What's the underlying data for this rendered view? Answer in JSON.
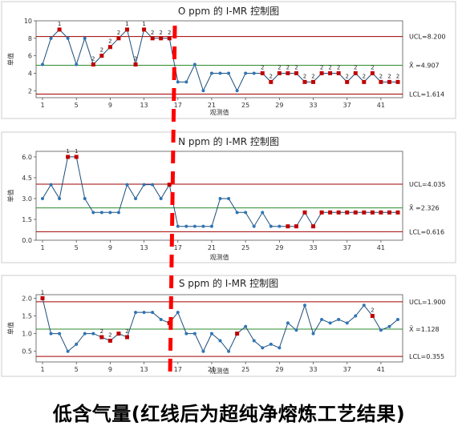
{
  "caption": "低含气量(红线后为超纯净熔炼工艺结果)",
  "colors": {
    "line": "#1f4e79",
    "point": "#2e75b6",
    "flag": "#c00000",
    "ucl": "#a00000",
    "center": "#2e8b2e",
    "divider": "#ff0000",
    "frame": "#cccccc"
  },
  "chart_data": [
    {
      "type": "line",
      "title": "O ppm 的 I-MR 控制图",
      "ylabel": "单值",
      "xlabel": "观测值",
      "ylim": [
        1.2,
        10
      ],
      "yticks": [
        "2",
        "4",
        "6",
        "8",
        "10"
      ],
      "ytick_values": [
        2,
        4,
        6,
        8,
        10
      ],
      "xticks": [
        "1",
        "5",
        "9",
        "13",
        "17",
        "21",
        "25",
        "29",
        "33",
        "37",
        "41"
      ],
      "ucl": 8.2,
      "ucl_label": "UCL=8.200",
      "center": 4.907,
      "center_label": "X̄ =4.907",
      "lcl": 1.614,
      "lcl_label": "LCL=1.614",
      "values": [
        5,
        8,
        9,
        8,
        5,
        8,
        5,
        6,
        7,
        8,
        9,
        5,
        9,
        8,
        8,
        8,
        3,
        3,
        5,
        2,
        4,
        4,
        4,
        2,
        4,
        4,
        4,
        3,
        4,
        4,
        4,
        3,
        3,
        4,
        4,
        4,
        3,
        4,
        3,
        4,
        3,
        3,
        3
      ],
      "flags": [
        {
          "i": 3,
          "t": "1"
        },
        {
          "i": 7,
          "t": "2"
        },
        {
          "i": 8,
          "t": "2"
        },
        {
          "i": 9,
          "t": "2"
        },
        {
          "i": 10,
          "t": "2"
        },
        {
          "i": 11,
          "t": "1"
        },
        {
          "i": 12,
          "t": "2"
        },
        {
          "i": 13,
          "t": "1"
        },
        {
          "i": 14,
          "t": "2"
        },
        {
          "i": 15,
          "t": "2"
        },
        {
          "i": 16,
          "t": "2"
        },
        {
          "i": 27,
          "t": "2"
        },
        {
          "i": 28,
          "t": "2"
        },
        {
          "i": 29,
          "t": "2"
        },
        {
          "i": 30,
          "t": "2"
        },
        {
          "i": 31,
          "t": "2"
        },
        {
          "i": 32,
          "t": "2"
        },
        {
          "i": 33,
          "t": "2"
        },
        {
          "i": 34,
          "t": "2"
        },
        {
          "i": 35,
          "t": "2"
        },
        {
          "i": 36,
          "t": "2"
        },
        {
          "i": 37,
          "t": "2"
        },
        {
          "i": 38,
          "t": "2"
        },
        {
          "i": 39,
          "t": "2"
        },
        {
          "i": 40,
          "t": "2"
        },
        {
          "i": 41,
          "t": "2"
        },
        {
          "i": 42,
          "t": "2"
        },
        {
          "i": 43,
          "t": "2"
        }
      ]
    },
    {
      "type": "line",
      "title": "N ppm 的 I-MR 控制图",
      "ylabel": "单值",
      "xlabel": "观测值",
      "ylim": [
        0,
        6.4
      ],
      "yticks": [
        "0.0",
        "1.5",
        "3.0",
        "4.5",
        "6.0"
      ],
      "ytick_values": [
        0,
        1.5,
        3,
        4.5,
        6
      ],
      "xticks": [
        "1",
        "5",
        "9",
        "13",
        "17",
        "21",
        "25",
        "29",
        "33",
        "37",
        "41"
      ],
      "ucl": 4.035,
      "ucl_label": "UCL=4.035",
      "center": 2.326,
      "center_label": "X̄ =2.326",
      "lcl": 0.616,
      "lcl_label": "LCL=0.616",
      "values": [
        3,
        4,
        3,
        6,
        6,
        3,
        2,
        2,
        2,
        2,
        4,
        3,
        4,
        4,
        3,
        4,
        1,
        1,
        1,
        1,
        1,
        3,
        3,
        2,
        2,
        1,
        2,
        1,
        1,
        1,
        1,
        2,
        1,
        2,
        2,
        2,
        2,
        2,
        2,
        2,
        2,
        2,
        2
      ],
      "flags": [
        {
          "i": 4,
          "t": "1"
        },
        {
          "i": 5,
          "t": "1"
        },
        {
          "i": 16,
          "t": ""
        },
        {
          "i": 30,
          "t": ""
        },
        {
          "i": 31,
          "t": ""
        },
        {
          "i": 32,
          "t": ""
        },
        {
          "i": 33,
          "t": ""
        },
        {
          "i": 34,
          "t": ""
        },
        {
          "i": 35,
          "t": ""
        },
        {
          "i": 36,
          "t": ""
        },
        {
          "i": 37,
          "t": ""
        },
        {
          "i": 38,
          "t": ""
        },
        {
          "i": 39,
          "t": ""
        },
        {
          "i": 40,
          "t": ""
        },
        {
          "i": 41,
          "t": ""
        },
        {
          "i": 42,
          "t": ""
        },
        {
          "i": 43,
          "t": ""
        }
      ]
    },
    {
      "type": "line",
      "title": "S ppm 的 I-MR 控制图",
      "ylabel": "单值",
      "xlabel": "观测值",
      "ylim": [
        0.2,
        2.1
      ],
      "yticks": [
        "0.5",
        "1.0",
        "1.5",
        "2.0"
      ],
      "ytick_values": [
        0.5,
        1.0,
        1.5,
        2.0
      ],
      "xticks": [
        "1",
        "5",
        "9",
        "13",
        "17",
        "21",
        "25",
        "29",
        "33",
        "37",
        "41"
      ],
      "ucl": 1.9,
      "ucl_label": "UCL=1.900",
      "center": 1.128,
      "center_label": "X̄ =1.128",
      "lcl": 0.355,
      "lcl_label": "LCL=0.355",
      "values": [
        2.0,
        1.0,
        1.0,
        0.5,
        0.7,
        1.0,
        1.0,
        0.9,
        0.8,
        1.0,
        0.9,
        1.6,
        1.6,
        1.6,
        1.4,
        1.3,
        1.6,
        1.0,
        1.0,
        0.5,
        1.0,
        0.8,
        0.5,
        1.0,
        1.2,
        0.8,
        0.6,
        0.7,
        0.6,
        1.3,
        1.1,
        1.8,
        1.0,
        1.4,
        1.3,
        1.4,
        1.3,
        1.5,
        1.8,
        1.5,
        1.1,
        1.2,
        1.4
      ],
      "flags": [
        {
          "i": 1,
          "t": "1"
        },
        {
          "i": 8,
          "t": "2"
        },
        {
          "i": 9,
          "t": "2"
        },
        {
          "i": 10,
          "t": ""
        },
        {
          "i": 11,
          "t": "2"
        },
        {
          "i": 16,
          "t": ""
        },
        {
          "i": 24,
          "t": ""
        },
        {
          "i": 40,
          "t": "2"
        }
      ]
    }
  ]
}
